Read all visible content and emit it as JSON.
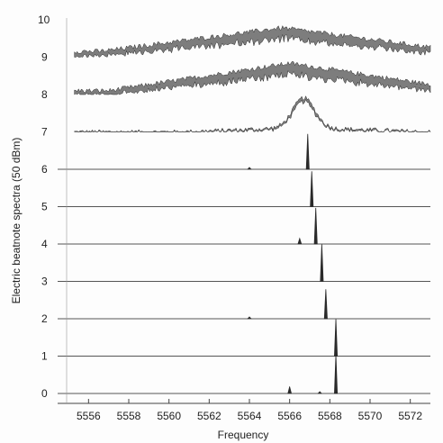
{
  "chart_data": {
    "type": "line",
    "title": "",
    "xlabel": "Frequency",
    "ylabel": "Electric beatnote spectra (50 dBm)",
    "xlim": [
      5555,
      5573
    ],
    "x_ticks": [
      5556,
      5558,
      5560,
      5562,
      5564,
      5566,
      5568,
      5570,
      5572
    ],
    "y_ticks": [
      "0",
      "1",
      "2",
      "3",
      "4",
      "5",
      "6",
      "7",
      "8",
      "9",
      "10"
    ],
    "grid": false,
    "traces": [
      {
        "index": 0,
        "label": "0",
        "style": "narrow",
        "peak_freq": 5568.3,
        "peak_height": 1.0,
        "minor_peaks": [
          {
            "freq": 5566.0,
            "height": 0.18
          },
          {
            "freq": 5567.5,
            "height": 0.05
          }
        ]
      },
      {
        "index": 1,
        "label": "1",
        "style": "narrow",
        "peak_freq": 5568.3,
        "peak_height": 0.95,
        "minor_peaks": []
      },
      {
        "index": 2,
        "label": "2",
        "style": "narrow",
        "peak_freq": 5567.8,
        "peak_height": 0.75,
        "minor_peaks": [
          {
            "freq": 5564.0,
            "height": 0.05
          }
        ]
      },
      {
        "index": 3,
        "label": "3",
        "style": "narrow",
        "peak_freq": 5567.6,
        "peak_height": 0.95,
        "minor_peaks": []
      },
      {
        "index": 4,
        "label": "4",
        "style": "narrow",
        "peak_freq": 5567.3,
        "peak_height": 0.92,
        "minor_peaks": [
          {
            "freq": 5566.5,
            "height": 0.15
          }
        ]
      },
      {
        "index": 5,
        "label": "5",
        "style": "narrow",
        "peak_freq": 5567.1,
        "peak_height": 0.9,
        "minor_peaks": []
      },
      {
        "index": 6,
        "label": "6",
        "style": "narrow",
        "peak_freq": 5566.9,
        "peak_height": 0.9,
        "minor_peaks": [
          {
            "freq": 5564.0,
            "height": 0.05
          }
        ]
      },
      {
        "index": 7,
        "label": "7",
        "style": "broad",
        "center_freq": 5566.7,
        "peak_height": 0.75,
        "base": 0.05,
        "band": 0.12
      },
      {
        "index": 8,
        "label": "8",
        "style": "broad",
        "center_freq": 5566.0,
        "peak_height": 0.8,
        "base": 0.1,
        "band": 0.35
      },
      {
        "index": 9,
        "label": "9",
        "style": "broad",
        "center_freq": 5565.6,
        "peak_height": 0.75,
        "base": 0.15,
        "band": 0.35
      }
    ]
  },
  "colors": {
    "trace": "#2a2a2a",
    "broad_fill": "#7d7d7d",
    "baseline": "#555555",
    "axis": "#444444"
  }
}
